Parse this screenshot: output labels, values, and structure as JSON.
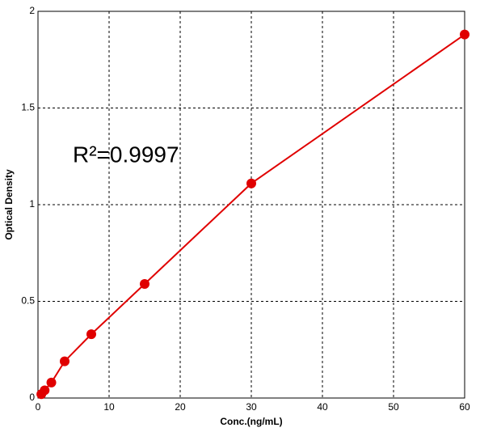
{
  "chart_data": {
    "type": "scatter-line",
    "x_label": "Conc.(ng/mL)",
    "y_label": "Optical Density",
    "annotation": "R²=0.9997",
    "series": [
      {
        "color": "#e00000",
        "x": [
          0.47,
          0.94,
          1.88,
          3.75,
          7.5,
          15,
          30,
          60
        ],
        "values": [
          0.02,
          0.04,
          0.08,
          0.19,
          0.33,
          0.59,
          1.11,
          1.88
        ]
      }
    ],
    "xlim": [
      0,
      60
    ],
    "xticks": [
      0,
      10,
      20,
      30,
      40,
      50,
      60
    ],
    "ylim": [
      0,
      2
    ],
    "yticks": [
      0,
      0.5,
      1,
      1.5,
      2
    ],
    "grid": true
  }
}
